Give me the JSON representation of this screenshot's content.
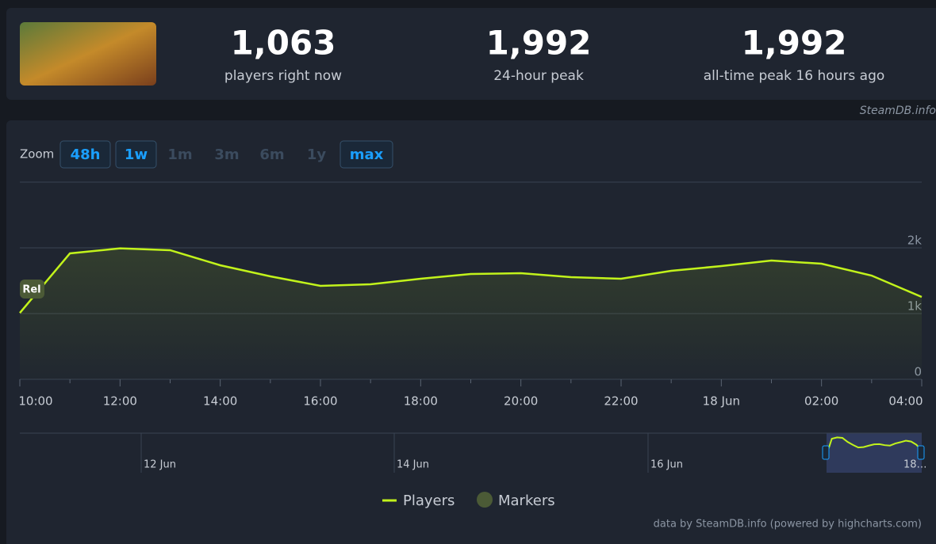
{
  "header": {
    "watermark": "SteamDB.info",
    "stats": [
      {
        "value": "1,063",
        "label": "players right now"
      },
      {
        "value": "1,992",
        "label": "24-hour peak"
      },
      {
        "value": "1,992",
        "label": "all-time peak 16 hours ago"
      }
    ]
  },
  "zoom": {
    "label": "Zoom",
    "buttons": [
      {
        "label": "48h",
        "active": true
      },
      {
        "label": "1w",
        "active": true
      },
      {
        "label": "1m",
        "active": false
      },
      {
        "label": "3m",
        "active": false
      },
      {
        "label": "6m",
        "active": false
      },
      {
        "label": "1y",
        "active": false
      },
      {
        "label": "max",
        "active": true
      }
    ]
  },
  "chart_data": {
    "type": "line",
    "categories": [
      "10:00",
      null,
      "12:00",
      null,
      "14:00",
      null,
      "16:00",
      null,
      "18:00",
      null,
      "20:00",
      null,
      "22:00",
      null,
      "18 Jun",
      null,
      "02:00",
      null,
      "04:00"
    ],
    "series": [
      {
        "name": "Players",
        "color": "#c2f31b",
        "values": [
          1010,
          1916,
          1992,
          1964,
          1735,
          1566,
          1422,
          1446,
          1530,
          1602,
          1614,
          1554,
          1530,
          1650,
          1723,
          1807,
          1759,
          1578,
          1253
        ]
      }
    ],
    "markers_legend": {
      "name": "Markers",
      "color": "#4b5a36"
    },
    "marker_label": "Rel",
    "ylim": [
      0,
      3000
    ],
    "yticks": [
      0,
      {
        "value": 1000,
        "label": "1k"
      },
      {
        "value": 2000,
        "label": "2k"
      }
    ],
    "grid": true,
    "navigator_labels": [
      "12 Jun",
      "14 Jun",
      "16 Jun",
      "18…"
    ],
    "credit": "data by SteamDB.info (powered by highcharts.com)"
  }
}
